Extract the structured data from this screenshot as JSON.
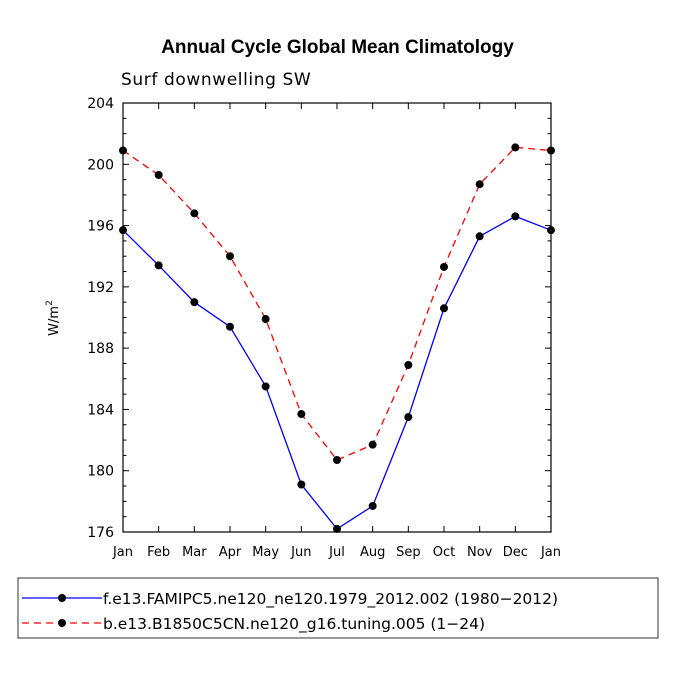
{
  "chart_data": {
    "type": "line",
    "title": "Annual Cycle Global Mean Climatology",
    "subtitle": "Surf downwelling SW",
    "ylabel_base": "W/m",
    "ylabel_sup": "2",
    "xlabel": "",
    "categories": [
      "Jan",
      "Feb",
      "Mar",
      "Apr",
      "May",
      "Jun",
      "Jul",
      "Aug",
      "Sep",
      "Oct",
      "Nov",
      "Dec",
      "Jan"
    ],
    "ylim": [
      176,
      204
    ],
    "yticks": [
      176,
      180,
      184,
      188,
      192,
      196,
      200,
      204
    ],
    "series": [
      {
        "name": "f.e13.FAMIPC5.ne120_ne120.1979_2012.002 (1980−2012)",
        "color": "#0000ff",
        "dash": "solid",
        "values": [
          195.7,
          193.4,
          191.0,
          189.4,
          185.5,
          179.1,
          176.2,
          177.7,
          183.5,
          190.6,
          195.3,
          196.6,
          195.7
        ]
      },
      {
        "name": "b.e13.B1850C5CN.ne120_g16.tuning.005 (1−24)",
        "color": "#ff0000",
        "dash": "dashed",
        "values": [
          200.9,
          199.3,
          196.8,
          194.0,
          189.9,
          183.7,
          180.7,
          181.7,
          186.9,
          193.3,
          198.7,
          201.1,
          200.9
        ]
      }
    ],
    "grid": false,
    "legend_position": "bottom"
  }
}
